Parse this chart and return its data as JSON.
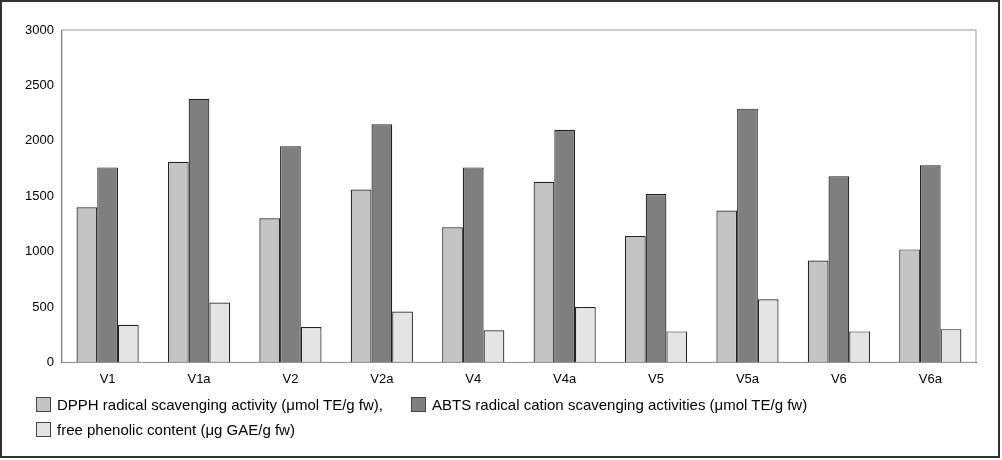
{
  "chart_data": {
    "type": "bar",
    "categories": [
      "V1",
      "V1a",
      "V2",
      "V2a",
      "V4",
      "V4a",
      "V5",
      "V5a",
      "V6",
      "V6a"
    ],
    "series": [
      {
        "name": "DPPH radical scavenging activity (μmol TE/g fw),",
        "color": "#c4c4c4",
        "values": [
          1400,
          1810,
          1300,
          1560,
          1220,
          1630,
          1140,
          1370,
          920,
          1020
        ]
      },
      {
        "name": "ABTS radical cation scavenging activities (μmol TE/g fw)",
        "color": "#7f7f7f",
        "values": [
          1760,
          2380,
          1950,
          2150,
          1760,
          2100,
          1520,
          2290,
          1680,
          1780
        ]
      },
      {
        "name": "free phenolic content (μg GAE/g fw)",
        "color": "#e4e4e4",
        "values": [
          340,
          540,
          320,
          460,
          290,
          500,
          280,
          570,
          280,
          300
        ]
      }
    ],
    "ylim": [
      0,
      3000
    ],
    "yticks": [
      0,
      500,
      1000,
      1500,
      2000,
      2500,
      3000
    ],
    "grid": false,
    "legend": "bottom"
  }
}
